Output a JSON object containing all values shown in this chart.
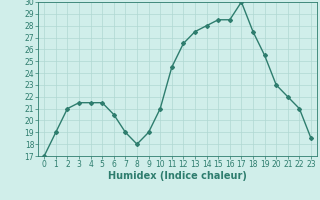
{
  "x": [
    0,
    1,
    2,
    3,
    4,
    5,
    6,
    7,
    8,
    9,
    10,
    11,
    12,
    13,
    14,
    15,
    16,
    17,
    18,
    19,
    20,
    21,
    22,
    23
  ],
  "y": [
    17,
    19,
    21,
    21.5,
    21.5,
    21.5,
    20.5,
    19,
    18,
    19,
    21,
    24.5,
    26.5,
    27.5,
    28,
    28.5,
    28.5,
    30,
    27.5,
    25.5,
    23,
    22,
    21,
    18.5
  ],
  "line_color": "#2e7d6e",
  "marker": "D",
  "marker_size": 2,
  "bg_color": "#d0eeea",
  "grid_color": "#b0d8d2",
  "xlabel": "Humidex (Indice chaleur)",
  "xlim": [
    -0.5,
    23.5
  ],
  "ylim": [
    17,
    30
  ],
  "yticks": [
    17,
    18,
    19,
    20,
    21,
    22,
    23,
    24,
    25,
    26,
    27,
    28,
    29,
    30
  ],
  "xticks": [
    0,
    1,
    2,
    3,
    4,
    5,
    6,
    7,
    8,
    9,
    10,
    11,
    12,
    13,
    14,
    15,
    16,
    17,
    18,
    19,
    20,
    21,
    22,
    23
  ],
  "tick_fontsize": 5.5,
  "xlabel_fontsize": 7,
  "line_width": 1.0
}
